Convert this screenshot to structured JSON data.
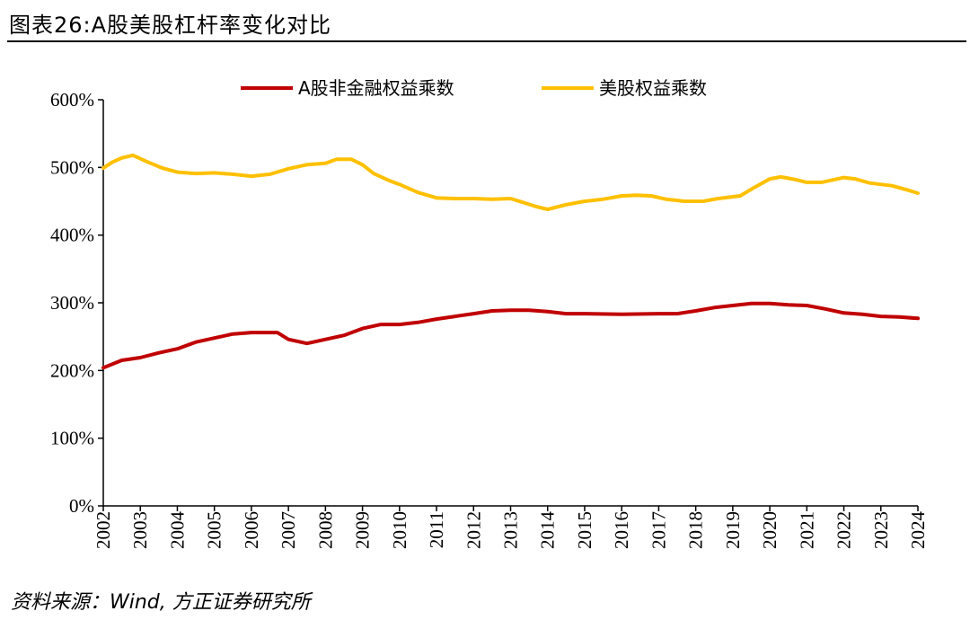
{
  "title": "图表26:A股美股杠杆率变化对比",
  "source": "资料来源：Wind, 方正证券研究所",
  "chart_data": {
    "type": "line",
    "title": "",
    "xlabel": "",
    "ylabel": "",
    "ylim": [
      0,
      600
    ],
    "xlim": [
      2002,
      2024
    ],
    "y_ticks": [
      "0%",
      "100%",
      "200%",
      "300%",
      "400%",
      "500%",
      "600%"
    ],
    "x_ticks": [
      "2002",
      "2003",
      "2004",
      "2005",
      "2006",
      "2007",
      "2008",
      "2009",
      "2010",
      "2011",
      "2012",
      "2013",
      "2014",
      "2015",
      "2016",
      "2017",
      "2018",
      "2019",
      "2020",
      "2021",
      "2022",
      "2023",
      "2024"
    ],
    "grid": false,
    "legend": "top",
    "series": [
      {
        "name": "A股非金融权益乘数",
        "color": "#C00000",
        "x": [
          2002,
          2002.5,
          2003,
          2003.5,
          2004,
          2004.5,
          2005,
          2005.5,
          2006,
          2006.7,
          2007,
          2007.5,
          2008,
          2008.5,
          2009,
          2009.5,
          2010,
          2010.5,
          2011,
          2011.5,
          2012,
          2012.5,
          2013,
          2013.5,
          2014,
          2014.5,
          2015,
          2016,
          2017,
          2017.5,
          2018,
          2018.5,
          2019,
          2019.5,
          2020,
          2020.5,
          2021,
          2021.5,
          2022,
          2022.5,
          2023,
          2023.5,
          2024
        ],
        "y": [
          204,
          215,
          219,
          226,
          232,
          242,
          248,
          254,
          256,
          256,
          246,
          240,
          246,
          252,
          262,
          268,
          268,
          271,
          276,
          280,
          284,
          288,
          289,
          289,
          287,
          284,
          284,
          283,
          284,
          284,
          288,
          293,
          296,
          299,
          299,
          297,
          296,
          291,
          285,
          283,
          280,
          279,
          277
        ]
      },
      {
        "name": "美股权益乘数",
        "color": "#FFC000",
        "x": [
          2002,
          2002.25,
          2002.5,
          2002.8,
          2003.2,
          2003.6,
          2004,
          2004.5,
          2005,
          2005.5,
          2006,
          2006.5,
          2007,
          2007.5,
          2008,
          2008.3,
          2008.7,
          2009,
          2009.3,
          2009.7,
          2010,
          2010.5,
          2011,
          2011.5,
          2012,
          2012.5,
          2013,
          2013.3,
          2013.7,
          2014,
          2014.5,
          2015,
          2015.5,
          2016,
          2016.4,
          2016.8,
          2017.2,
          2017.7,
          2018.2,
          2018.6,
          2019.2,
          2019.6,
          2020,
          2020.3,
          2020.7,
          2021,
          2021.4,
          2022,
          2022.3,
          2022.7,
          2023.3,
          2023.7,
          2024
        ],
        "y": [
          499,
          508,
          514,
          518,
          508,
          499,
          493,
          491,
          492,
          490,
          487,
          490,
          498,
          504,
          506,
          512,
          512,
          504,
          491,
          481,
          475,
          463,
          455,
          454,
          454,
          453,
          454,
          449,
          442,
          438,
          445,
          450,
          453,
          458,
          459,
          458,
          453,
          450,
          450,
          454,
          458,
          471,
          483,
          486,
          482,
          478,
          478,
          485,
          483,
          477,
          473,
          467,
          462
        ]
      }
    ]
  }
}
